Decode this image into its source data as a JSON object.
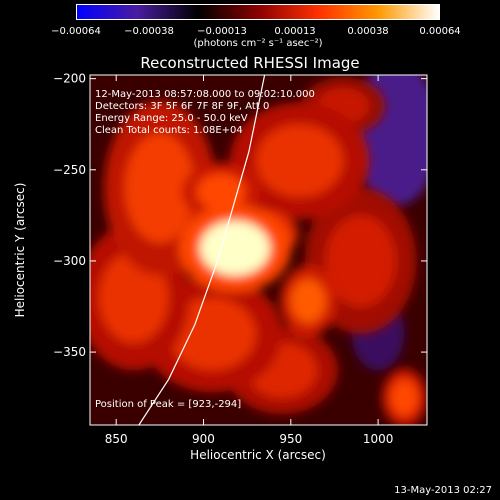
{
  "colorbar": {
    "tick_labels": [
      "−0.00064",
      "−0.00038",
      "−0.00013",
      "0.00013",
      "0.00038",
      "0.00064"
    ],
    "units": "(photons cm⁻² s⁻¹ asec⁻²)",
    "colors": [
      "#0000ff",
      "#4a1ca0",
      "#000000",
      "#8a0000",
      "#ff3000",
      "#ff9a00",
      "#ffffff"
    ]
  },
  "title": "Reconstructed RHESSI Image",
  "annotations": {
    "time_range": "12-May-2013 08:57:08.000 to 09:02:10.000",
    "detectors": "Detectors: 3F 5F 6F 7F 8F 9F, Att 0",
    "energy": "Energy Range: 25.0 - 50.0 keV",
    "clean": "Clean      Total counts: 1.08E+04",
    "peak": "Position of Peak = [923,-294]"
  },
  "timestamp": "13-May-2013 02:27",
  "chart_data": {
    "type": "heatmap",
    "title": "Reconstructed RHESSI Image",
    "xlabel": "Heliocentric X (arcsec)",
    "ylabel": "Heliocentric Y (arcsec)",
    "xlim": [
      835,
      1028
    ],
    "ylim": [
      -390,
      -198
    ],
    "x_ticks": [
      850,
      900,
      950,
      1000
    ],
    "y_ticks": [
      -200,
      -250,
      -300,
      -350
    ],
    "x_tick_labels": [
      "850",
      "900",
      "950",
      "1000"
    ],
    "y_tick_labels": [
      "−200",
      "−250",
      "−300",
      "−350"
    ],
    "colorbar_range": [
      -0.00064,
      0.00064
    ],
    "peak": {
      "x": 923,
      "y": -294
    },
    "limb_curve": [
      [
        863,
        -390
      ],
      [
        880,
        -365
      ],
      [
        895,
        -335
      ],
      [
        908,
        -300
      ],
      [
        917,
        -270
      ],
      [
        926,
        -240
      ],
      [
        935,
        -198
      ]
    ],
    "sources": [
      {
        "x": 918,
        "y": -293,
        "rx": 20,
        "ry": 15,
        "level": 1.0
      },
      {
        "x": 935,
        "y": -285,
        "rx": 12,
        "ry": 8,
        "level": 0.75
      },
      {
        "x": 960,
        "y": -322,
        "rx": 10,
        "ry": 12,
        "level": 0.6
      },
      {
        "x": 910,
        "y": -262,
        "rx": 14,
        "ry": 10,
        "level": 0.55
      },
      {
        "x": 875,
        "y": -260,
        "rx": 20,
        "ry": 30,
        "level": 0.5
      },
      {
        "x": 955,
        "y": -245,
        "rx": 25,
        "ry": 20,
        "level": 0.45
      },
      {
        "x": 905,
        "y": -340,
        "rx": 25,
        "ry": 20,
        "level": 0.45
      },
      {
        "x": 1015,
        "y": -375,
        "rx": 8,
        "ry": 10,
        "level": 0.55
      },
      {
        "x": 990,
        "y": -300,
        "rx": 20,
        "ry": 25,
        "level": 0.35
      },
      {
        "x": 860,
        "y": -320,
        "rx": 20,
        "ry": 25,
        "level": 0.45
      },
      {
        "x": 945,
        "y": -360,
        "rx": 20,
        "ry": 15,
        "level": 0.4
      },
      {
        "x": 980,
        "y": -215,
        "rx": 15,
        "ry": 10,
        "level": 0.3
      }
    ],
    "negative_regions": [
      {
        "x": 1010,
        "y": -230,
        "rx": 25,
        "ry": 40,
        "level": 0.6
      },
      {
        "x": 1000,
        "y": -340,
        "rx": 15,
        "ry": 20,
        "level": 0.3
      }
    ]
  }
}
